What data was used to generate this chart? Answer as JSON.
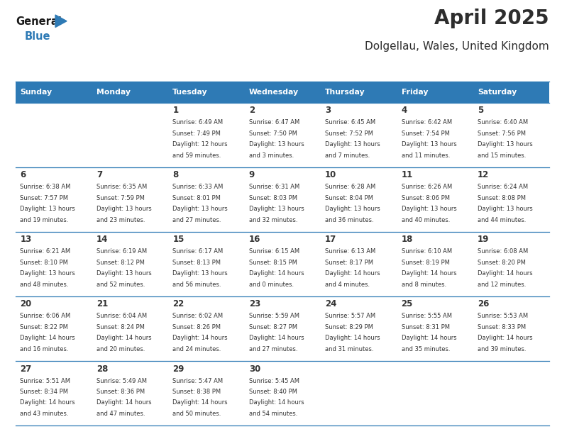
{
  "title": "April 2025",
  "subtitle": "Dolgellau, Wales, United Kingdom",
  "header_bg": "#2E7AB5",
  "header_text_color": "#FFFFFF",
  "cell_bg_white": "#FFFFFF",
  "day_headers": [
    "Sunday",
    "Monday",
    "Tuesday",
    "Wednesday",
    "Thursday",
    "Friday",
    "Saturday"
  ],
  "days": [
    {
      "day": 1,
      "col": 2,
      "row": 0,
      "sunrise": "6:49 AM",
      "sunset": "7:49 PM",
      "daylight_h": "12 hours",
      "daylight_m": "and 59 minutes."
    },
    {
      "day": 2,
      "col": 3,
      "row": 0,
      "sunrise": "6:47 AM",
      "sunset": "7:50 PM",
      "daylight_h": "13 hours",
      "daylight_m": "and 3 minutes."
    },
    {
      "day": 3,
      "col": 4,
      "row": 0,
      "sunrise": "6:45 AM",
      "sunset": "7:52 PM",
      "daylight_h": "13 hours",
      "daylight_m": "and 7 minutes."
    },
    {
      "day": 4,
      "col": 5,
      "row": 0,
      "sunrise": "6:42 AM",
      "sunset": "7:54 PM",
      "daylight_h": "13 hours",
      "daylight_m": "and 11 minutes."
    },
    {
      "day": 5,
      "col": 6,
      "row": 0,
      "sunrise": "6:40 AM",
      "sunset": "7:56 PM",
      "daylight_h": "13 hours",
      "daylight_m": "and 15 minutes."
    },
    {
      "day": 6,
      "col": 0,
      "row": 1,
      "sunrise": "6:38 AM",
      "sunset": "7:57 PM",
      "daylight_h": "13 hours",
      "daylight_m": "and 19 minutes."
    },
    {
      "day": 7,
      "col": 1,
      "row": 1,
      "sunrise": "6:35 AM",
      "sunset": "7:59 PM",
      "daylight_h": "13 hours",
      "daylight_m": "and 23 minutes."
    },
    {
      "day": 8,
      "col": 2,
      "row": 1,
      "sunrise": "6:33 AM",
      "sunset": "8:01 PM",
      "daylight_h": "13 hours",
      "daylight_m": "and 27 minutes."
    },
    {
      "day": 9,
      "col": 3,
      "row": 1,
      "sunrise": "6:31 AM",
      "sunset": "8:03 PM",
      "daylight_h": "13 hours",
      "daylight_m": "and 32 minutes."
    },
    {
      "day": 10,
      "col": 4,
      "row": 1,
      "sunrise": "6:28 AM",
      "sunset": "8:04 PM",
      "daylight_h": "13 hours",
      "daylight_m": "and 36 minutes."
    },
    {
      "day": 11,
      "col": 5,
      "row": 1,
      "sunrise": "6:26 AM",
      "sunset": "8:06 PM",
      "daylight_h": "13 hours",
      "daylight_m": "and 40 minutes."
    },
    {
      "day": 12,
      "col": 6,
      "row": 1,
      "sunrise": "6:24 AM",
      "sunset": "8:08 PM",
      "daylight_h": "13 hours",
      "daylight_m": "and 44 minutes."
    },
    {
      "day": 13,
      "col": 0,
      "row": 2,
      "sunrise": "6:21 AM",
      "sunset": "8:10 PM",
      "daylight_h": "13 hours",
      "daylight_m": "and 48 minutes."
    },
    {
      "day": 14,
      "col": 1,
      "row": 2,
      "sunrise": "6:19 AM",
      "sunset": "8:12 PM",
      "daylight_h": "13 hours",
      "daylight_m": "and 52 minutes."
    },
    {
      "day": 15,
      "col": 2,
      "row": 2,
      "sunrise": "6:17 AM",
      "sunset": "8:13 PM",
      "daylight_h": "13 hours",
      "daylight_m": "and 56 minutes."
    },
    {
      "day": 16,
      "col": 3,
      "row": 2,
      "sunrise": "6:15 AM",
      "sunset": "8:15 PM",
      "daylight_h": "14 hours",
      "daylight_m": "and 0 minutes."
    },
    {
      "day": 17,
      "col": 4,
      "row": 2,
      "sunrise": "6:13 AM",
      "sunset": "8:17 PM",
      "daylight_h": "14 hours",
      "daylight_m": "and 4 minutes."
    },
    {
      "day": 18,
      "col": 5,
      "row": 2,
      "sunrise": "6:10 AM",
      "sunset": "8:19 PM",
      "daylight_h": "14 hours",
      "daylight_m": "and 8 minutes."
    },
    {
      "day": 19,
      "col": 6,
      "row": 2,
      "sunrise": "6:08 AM",
      "sunset": "8:20 PM",
      "daylight_h": "14 hours",
      "daylight_m": "and 12 minutes."
    },
    {
      "day": 20,
      "col": 0,
      "row": 3,
      "sunrise": "6:06 AM",
      "sunset": "8:22 PM",
      "daylight_h": "14 hours",
      "daylight_m": "and 16 minutes."
    },
    {
      "day": 21,
      "col": 1,
      "row": 3,
      "sunrise": "6:04 AM",
      "sunset": "8:24 PM",
      "daylight_h": "14 hours",
      "daylight_m": "and 20 minutes."
    },
    {
      "day": 22,
      "col": 2,
      "row": 3,
      "sunrise": "6:02 AM",
      "sunset": "8:26 PM",
      "daylight_h": "14 hours",
      "daylight_m": "and 24 minutes."
    },
    {
      "day": 23,
      "col": 3,
      "row": 3,
      "sunrise": "5:59 AM",
      "sunset": "8:27 PM",
      "daylight_h": "14 hours",
      "daylight_m": "and 27 minutes."
    },
    {
      "day": 24,
      "col": 4,
      "row": 3,
      "sunrise": "5:57 AM",
      "sunset": "8:29 PM",
      "daylight_h": "14 hours",
      "daylight_m": "and 31 minutes."
    },
    {
      "day": 25,
      "col": 5,
      "row": 3,
      "sunrise": "5:55 AM",
      "sunset": "8:31 PM",
      "daylight_h": "14 hours",
      "daylight_m": "and 35 minutes."
    },
    {
      "day": 26,
      "col": 6,
      "row": 3,
      "sunrise": "5:53 AM",
      "sunset": "8:33 PM",
      "daylight_h": "14 hours",
      "daylight_m": "and 39 minutes."
    },
    {
      "day": 27,
      "col": 0,
      "row": 4,
      "sunrise": "5:51 AM",
      "sunset": "8:34 PM",
      "daylight_h": "14 hours",
      "daylight_m": "and 43 minutes."
    },
    {
      "day": 28,
      "col": 1,
      "row": 4,
      "sunrise": "5:49 AM",
      "sunset": "8:36 PM",
      "daylight_h": "14 hours",
      "daylight_m": "and 47 minutes."
    },
    {
      "day": 29,
      "col": 2,
      "row": 4,
      "sunrise": "5:47 AM",
      "sunset": "8:38 PM",
      "daylight_h": "14 hours",
      "daylight_m": "and 50 minutes."
    },
    {
      "day": 30,
      "col": 3,
      "row": 4,
      "sunrise": "5:45 AM",
      "sunset": "8:40 PM",
      "daylight_h": "14 hours",
      "daylight_m": "and 54 minutes."
    }
  ],
  "logo_color": "#2E7AB5",
  "title_color": "#2d2d2d",
  "subtitle_color": "#2d2d2d",
  "cell_text_color": "#333333",
  "divider_color": "#2E7AB5",
  "fig_bg": "#FFFFFF",
  "fig_width": 7.92,
  "fig_height": 6.12,
  "dpi": 100
}
